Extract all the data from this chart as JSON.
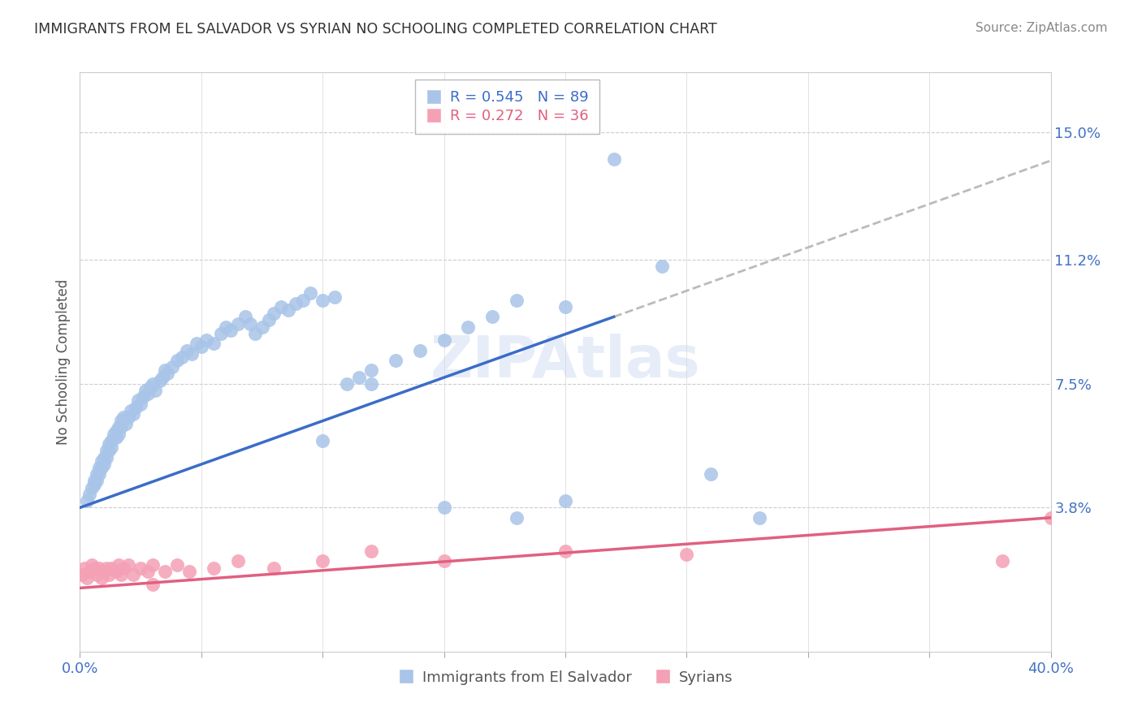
{
  "title": "IMMIGRANTS FROM EL SALVADOR VS SYRIAN NO SCHOOLING COMPLETED CORRELATION CHART",
  "source": "Source: ZipAtlas.com",
  "ylabel": "No Schooling Completed",
  "yticks": [
    "15.0%",
    "11.2%",
    "7.5%",
    "3.8%"
  ],
  "ytick_vals": [
    0.15,
    0.112,
    0.075,
    0.038
  ],
  "xlim": [
    0.0,
    0.4
  ],
  "ylim": [
    -0.005,
    0.168
  ],
  "legend_label1": "Immigrants from El Salvador",
  "legend_label2": "Syrians",
  "legend_R1": "R = 0.545",
  "legend_N1": "N = 89",
  "legend_R2": "R = 0.272",
  "legend_N2": "N = 36",
  "color_blue": "#A8C4E8",
  "color_pink": "#F4A0B5",
  "color_line_blue": "#3B6CC8",
  "color_line_pink": "#E06080",
  "color_line_gray": "#BBBBBB",
  "axis_label_color": "#4472C4",
  "watermark": "ZIPAtlas",
  "es_line_x0": 0.0,
  "es_line_y0": 0.038,
  "es_line_x1": 0.22,
  "es_line_y1": 0.095,
  "sy_line_x0": 0.0,
  "sy_line_y0": 0.014,
  "sy_line_x1": 0.4,
  "sy_line_y1": 0.035,
  "el_salvador_x": [
    0.003,
    0.004,
    0.005,
    0.006,
    0.006,
    0.007,
    0.007,
    0.008,
    0.008,
    0.009,
    0.009,
    0.01,
    0.01,
    0.011,
    0.011,
    0.012,
    0.012,
    0.013,
    0.013,
    0.014,
    0.015,
    0.015,
    0.016,
    0.016,
    0.017,
    0.017,
    0.018,
    0.019,
    0.02,
    0.021,
    0.022,
    0.023,
    0.024,
    0.025,
    0.026,
    0.027,
    0.028,
    0.029,
    0.03,
    0.031,
    0.033,
    0.034,
    0.035,
    0.036,
    0.038,
    0.04,
    0.042,
    0.044,
    0.046,
    0.048,
    0.05,
    0.052,
    0.055,
    0.058,
    0.06,
    0.062,
    0.065,
    0.068,
    0.07,
    0.072,
    0.075,
    0.078,
    0.08,
    0.083,
    0.086,
    0.089,
    0.092,
    0.095,
    0.1,
    0.105,
    0.11,
    0.115,
    0.12,
    0.13,
    0.14,
    0.15,
    0.16,
    0.17,
    0.18,
    0.2,
    0.22,
    0.24,
    0.26,
    0.28,
    0.1,
    0.12,
    0.15,
    0.18,
    0.2
  ],
  "el_salvador_y": [
    0.04,
    0.042,
    0.044,
    0.046,
    0.045,
    0.048,
    0.046,
    0.05,
    0.048,
    0.052,
    0.05,
    0.053,
    0.051,
    0.055,
    0.053,
    0.057,
    0.055,
    0.058,
    0.056,
    0.06,
    0.061,
    0.059,
    0.062,
    0.06,
    0.064,
    0.062,
    0.065,
    0.063,
    0.065,
    0.067,
    0.066,
    0.068,
    0.07,
    0.069,
    0.071,
    0.073,
    0.072,
    0.074,
    0.075,
    0.073,
    0.076,
    0.077,
    0.079,
    0.078,
    0.08,
    0.082,
    0.083,
    0.085,
    0.084,
    0.087,
    0.086,
    0.088,
    0.087,
    0.09,
    0.092,
    0.091,
    0.093,
    0.095,
    0.093,
    0.09,
    0.092,
    0.094,
    0.096,
    0.098,
    0.097,
    0.099,
    0.1,
    0.102,
    0.1,
    0.101,
    0.075,
    0.077,
    0.079,
    0.082,
    0.085,
    0.088,
    0.092,
    0.095,
    0.1,
    0.098,
    0.142,
    0.11,
    0.048,
    0.035,
    0.058,
    0.075,
    0.038,
    0.035,
    0.04
  ],
  "syrian_x": [
    0.001,
    0.002,
    0.003,
    0.004,
    0.005,
    0.006,
    0.007,
    0.008,
    0.009,
    0.01,
    0.011,
    0.012,
    0.013,
    0.015,
    0.016,
    0.017,
    0.018,
    0.02,
    0.022,
    0.025,
    0.028,
    0.03,
    0.035,
    0.04,
    0.045,
    0.055,
    0.065,
    0.08,
    0.1,
    0.15,
    0.2,
    0.25,
    0.38,
    0.4,
    0.12,
    0.03
  ],
  "syrian_y": [
    0.018,
    0.02,
    0.017,
    0.019,
    0.021,
    0.02,
    0.018,
    0.02,
    0.017,
    0.019,
    0.02,
    0.018,
    0.02,
    0.019,
    0.021,
    0.018,
    0.02,
    0.021,
    0.018,
    0.02,
    0.019,
    0.021,
    0.019,
    0.021,
    0.019,
    0.02,
    0.022,
    0.02,
    0.022,
    0.022,
    0.025,
    0.024,
    0.022,
    0.035,
    0.025,
    0.015
  ]
}
